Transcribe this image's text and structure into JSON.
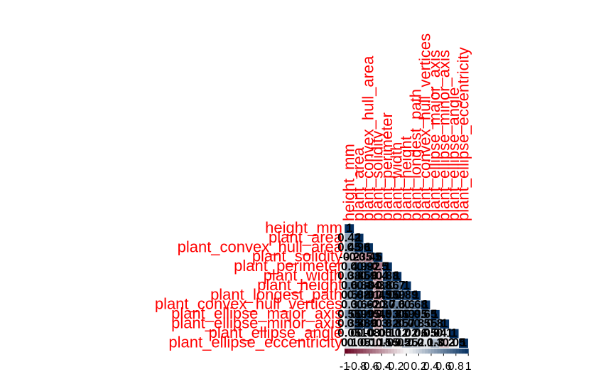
{
  "chart_data": {
    "type": "corrplot",
    "categories": [
      "height_mm",
      "plant_area",
      "plant_convex_hull_area",
      "plant_solidity",
      "plant_perimeter",
      "plant_width",
      "plant_height",
      "plant_longest_path",
      "plant_convex_hull_vertices",
      "plant_ellipse_major_axis",
      "plant_ellipse_minor_axis",
      "plant_ellipse_angle",
      "plant_ellipse_eccentricity"
    ],
    "matrix": [
      [
        1
      ],
      [
        0.42,
        1
      ],
      [
        0.45,
        0.96,
        1
      ],
      [
        -0.2,
        -0.35,
        -0.45,
        1
      ],
      [
        0.4,
        0.9,
        0.92,
        -0.5,
        1
      ],
      [
        0.38,
        0.85,
        0.9,
        -0.4,
        0.88,
        1
      ],
      [
        0.6,
        0.8,
        0.84,
        -0.38,
        0.86,
        0.7,
        1
      ],
      [
        0.5,
        0.88,
        0.91,
        -0.45,
        0.95,
        0.9,
        0.89,
        1
      ],
      [
        0.3,
        0.6,
        0.62,
        -0.3,
        0.7,
        0.6,
        0.6,
        0.68,
        1
      ],
      [
        0.55,
        0.9,
        0.95,
        -0.45,
        0.93,
        0.86,
        0.9,
        0.95,
        0.65,
        1
      ],
      [
        0.35,
        0.88,
        0.9,
        -0.3,
        0.82,
        0.85,
        0.7,
        0.8,
        0.55,
        0.8,
        1
      ],
      [
        0.05,
        0.1,
        0.08,
        -0.05,
        0.1,
        0.12,
        0.02,
        0.06,
        0.05,
        0.04,
        0.1,
        1
      ],
      [
        0.1,
        0.05,
        0.1,
        -0.15,
        0.15,
        -0.05,
        0.25,
        0.2,
        0.1,
        0.3,
        -0.2,
        0.05,
        1
      ]
    ],
    "clim": [
      -1,
      1
    ],
    "colorbar_ticks": [
      -1,
      -0.8,
      -0.6,
      -0.4,
      -0.2,
      0,
      0.2,
      0.4,
      0.6,
      0.8,
      1
    ],
    "label_color": "#ff0000"
  }
}
